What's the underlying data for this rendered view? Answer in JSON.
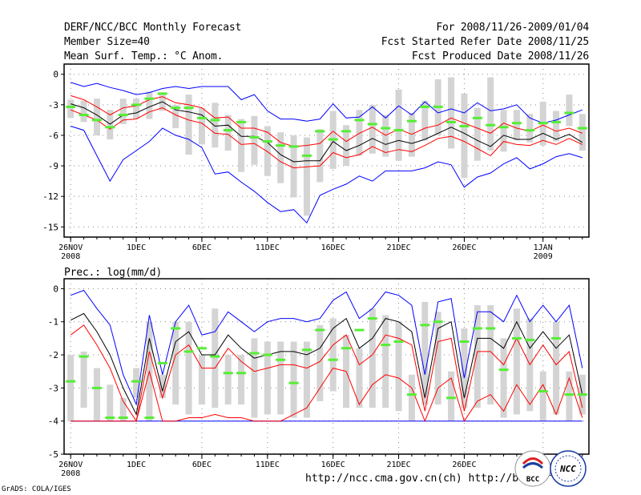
{
  "header": {
    "title": "DERF/NCC/BCC Monthly Forecast",
    "member_size": "Member Size=40",
    "variable": "Mean Surf. Temp.: °C Anom.",
    "period": "For 2008/11/26-2009/01/04",
    "fcst_started": "Fcst Started Refer Date 2008/11/25",
    "fcst_produced": "Fcst Produced Date 2008/11/26"
  },
  "footer": {
    "url": "http://ncc.cma.gov.cn(ch)   http://bcc.c",
    "credit": "GrADS: COLA/IGES",
    "logo_left": "BCC",
    "logo_right": "NCC"
  },
  "colors": {
    "spread": "#0000ff",
    "quartile": "#ff0000",
    "mean": "#000000",
    "median": "#55ee33",
    "box": "#d4d4d4",
    "grid": "#888888"
  },
  "chart_data": [
    {
      "type": "line",
      "title": "Mean Surf. Temp.: °C Anom.",
      "ylabel": "°C Anom.",
      "ylim": [
        -16,
        1
      ],
      "yticks": [
        0,
        -3,
        -6,
        -9,
        -12,
        -15
      ],
      "day_range": [
        -0.5,
        39.5
      ],
      "xticks": [
        {
          "day": 0,
          "label": "26NOV",
          "year": "2008"
        },
        {
          "day": 5,
          "label": "1DEC"
        },
        {
          "day": 10,
          "label": "6DEC"
        },
        {
          "day": 15,
          "label": "11DEC"
        },
        {
          "day": 20,
          "label": "16DEC"
        },
        {
          "day": 25,
          "label": "21DEC"
        },
        {
          "day": 30,
          "label": "26DEC"
        },
        {
          "day": 36,
          "label": "1JAN",
          "year": "2009"
        }
      ],
      "series": [
        {
          "name": "max",
          "color": "blue",
          "values": [
            -0.8,
            -1.2,
            -0.9,
            -1.3,
            -1.6,
            -2.0,
            -1.8,
            -1.4,
            -1.2,
            -1.4,
            -1.2,
            -1.2,
            -1.2,
            -2.5,
            -2.0,
            -3.6,
            -4.4,
            -4.4,
            -4.6,
            -4.4,
            -2.9,
            -4.3,
            -4.2,
            -3.2,
            -4.3,
            -3.1,
            -4.0,
            -2.7,
            -3.8,
            -3.4,
            -3.8,
            -2.8,
            -3.6,
            -3.4,
            -3.0,
            -4.3,
            -4.8,
            -4.5,
            -4.0,
            -3.5
          ]
        },
        {
          "name": "q75",
          "color": "red",
          "values": [
            -2.1,
            -2.5,
            -3.2,
            -4.0,
            -3.3,
            -3.1,
            -2.5,
            -2.2,
            -2.8,
            -3.0,
            -3.3,
            -4.3,
            -4.2,
            -5.3,
            -5.3,
            -5.7,
            -6.7,
            -7.1,
            -7.0,
            -6.8,
            -5.6,
            -6.6,
            -5.8,
            -5.2,
            -6.0,
            -5.4,
            -5.9,
            -5.3,
            -5.0,
            -4.3,
            -4.8,
            -5.3,
            -5.8,
            -4.8,
            -5.3,
            -5.6,
            -5.0,
            -5.6,
            -5.3,
            -5.8
          ]
        },
        {
          "name": "mean",
          "color": "black",
          "values": [
            -2.9,
            -3.3,
            -4.0,
            -4.9,
            -4.0,
            -3.8,
            -3.2,
            -2.7,
            -3.5,
            -3.7,
            -4.0,
            -5.1,
            -5.0,
            -6.1,
            -6.1,
            -6.7,
            -7.9,
            -8.6,
            -8.5,
            -8.5,
            -6.6,
            -7.5,
            -7.0,
            -6.3,
            -6.9,
            -6.5,
            -6.8,
            -6.4,
            -5.8,
            -5.2,
            -5.8,
            -6.5,
            -7.1,
            -6.0,
            -6.4,
            -6.4,
            -5.8,
            -6.4,
            -5.9,
            -6.7
          ]
        },
        {
          "name": "q25",
          "color": "red",
          "values": [
            -3.5,
            -4.0,
            -4.5,
            -5.4,
            -4.5,
            -4.4,
            -3.7,
            -3.3,
            -4.0,
            -4.5,
            -4.8,
            -5.8,
            -5.9,
            -6.9,
            -6.8,
            -7.6,
            -8.6,
            -9.2,
            -9.1,
            -9.0,
            -7.7,
            -8.2,
            -7.9,
            -7.1,
            -7.7,
            -7.4,
            -7.6,
            -7.0,
            -6.3,
            -6.1,
            -6.6,
            -7.3,
            -8.0,
            -6.6,
            -6.9,
            -7.0,
            -6.5,
            -6.9,
            -6.3,
            -6.9
          ]
        },
        {
          "name": "min",
          "color": "blue",
          "values": [
            -5.1,
            -5.5,
            -8.0,
            -10.5,
            -8.4,
            -7.5,
            -6.6,
            -5.3,
            -6.0,
            -6.4,
            -7.2,
            -9.8,
            -9.6,
            -10.6,
            -11.5,
            -12.6,
            -13.5,
            -13.3,
            -14.6,
            -11.9,
            -11.3,
            -10.8,
            -10.0,
            -10.5,
            -9.5,
            -9.5,
            -9.5,
            -9.2,
            -8.6,
            -8.9,
            -11.1,
            -10.1,
            -9.7,
            -8.8,
            -8.2,
            -9.3,
            -8.8,
            -8.1,
            -7.8,
            -8.2
          ]
        },
        {
          "name": "median",
          "color": "green",
          "values": [
            -3.2,
            -4.0,
            -4.5,
            -5.2,
            -4.0,
            -3.0,
            -2.4,
            -1.9,
            -3.3,
            -3.3,
            -4.3,
            -4.5,
            -5.5,
            -4.7,
            -6.2,
            -6.6,
            -7.0,
            -7.1,
            -8.0,
            -5.6,
            -6.4,
            -5.6,
            -4.5,
            -4.9,
            -5.3,
            -5.5,
            -4.6,
            -3.2,
            -3.2,
            -4.7,
            -5.1,
            -4.3,
            -5.0,
            -5.2,
            -4.8,
            -5.5,
            -4.8,
            -4.7,
            -3.8,
            -5.3
          ]
        },
        {
          "name": "box_high",
          "color": "grey",
          "values": [
            -2.5,
            -2.6,
            -2.4,
            -3.5,
            -2.4,
            -2.4,
            -1.7,
            -2.0,
            -3.0,
            -2.0,
            -3.3,
            -2.8,
            -4.0,
            -4.4,
            -4.1,
            -5.1,
            -5.7,
            -6.0,
            -6.2,
            -5.4,
            -3.6,
            -5.0,
            -3.5,
            -3.0,
            -4.0,
            -1.5,
            -3.8,
            -2.6,
            -0.5,
            -0.3,
            -1.9,
            -3.3,
            -0.3,
            -3.5,
            -3.5,
            -3.9,
            -2.7,
            -3.6,
            -2.0,
            -3.9
          ]
        },
        {
          "name": "box_low",
          "color": "grey",
          "values": [
            -4.3,
            -4.7,
            -6.0,
            -6.4,
            -4.9,
            -4.4,
            -4.4,
            -3.6,
            -5.3,
            -7.9,
            -6.9,
            -7.2,
            -7.5,
            -9.6,
            -8.9,
            -10.0,
            -10.7,
            -12.1,
            -13.9,
            -10.6,
            -9.3,
            -9.0,
            -8.0,
            -7.8,
            -8.1,
            -8.5,
            -8.1,
            -6.5,
            -6.0,
            -7.3,
            -10.2,
            -8.5,
            -7.5,
            -7.6,
            -6.5,
            -6.7,
            -7.0,
            -6.6,
            -5.1,
            -7.5
          ]
        }
      ]
    },
    {
      "type": "line",
      "title": "Prec.: log(mm/d)",
      "ylabel": "log(mm/d)",
      "ylim": [
        -5,
        0.3
      ],
      "yticks": [
        0,
        -1,
        -2,
        -3,
        -4,
        -5
      ],
      "day_range": [
        -0.5,
        39.5
      ],
      "xticks": [
        {
          "day": 0,
          "label": "26NOV",
          "year": "2008"
        },
        {
          "day": 5,
          "label": "1DEC"
        },
        {
          "day": 10,
          "label": "6DEC"
        },
        {
          "day": 15,
          "label": "11DEC"
        },
        {
          "day": 20,
          "label": "16DEC"
        },
        {
          "day": 25,
          "label": "21DEC"
        },
        {
          "day": 30,
          "label": "26DEC"
        },
        {
          "day": 36,
          "label": "1JAN",
          "year": "2009"
        }
      ],
      "series": [
        {
          "name": "max",
          "color": "blue",
          "values": [
            -0.2,
            -0.05,
            -0.6,
            -1.1,
            -2.6,
            -3.5,
            -0.8,
            -2.6,
            -1.0,
            -0.5,
            -1.4,
            -1.3,
            -0.7,
            -1.0,
            -1.3,
            -1.0,
            -0.9,
            -0.9,
            -1.0,
            -0.9,
            -0.35,
            -0.1,
            -0.9,
            -0.6,
            -0.1,
            -0.2,
            -0.5,
            -2.6,
            -0.4,
            -0.3,
            -2.7,
            -0.7,
            -0.7,
            -1.0,
            -0.2,
            -1.0,
            -0.5,
            -1.0,
            -0.5,
            -2.4
          ]
        },
        {
          "name": "q75",
          "color": "red",
          "values": [
            -1.4,
            -1.1,
            -1.7,
            -2.4,
            -3.4,
            -4.0,
            -1.9,
            -3.3,
            -2.0,
            -1.7,
            -2.4,
            -2.4,
            -1.8,
            -2.2,
            -2.5,
            -2.4,
            -2.3,
            -2.3,
            -2.4,
            -2.2,
            -1.7,
            -1.4,
            -2.3,
            -2.0,
            -1.4,
            -1.5,
            -1.7,
            -3.7,
            -1.6,
            -1.5,
            -3.7,
            -1.9,
            -1.9,
            -2.3,
            -1.5,
            -2.3,
            -1.7,
            -2.3,
            -1.9,
            -3.6
          ]
        },
        {
          "name": "mean",
          "color": "black",
          "values": [
            -0.95,
            -0.75,
            -1.3,
            -2.0,
            -3.0,
            -3.8,
            -1.5,
            -3.1,
            -1.6,
            -1.3,
            -2.0,
            -2.0,
            -1.4,
            -1.8,
            -2.1,
            -2.0,
            -1.9,
            -1.9,
            -2.0,
            -1.8,
            -1.2,
            -0.9,
            -1.8,
            -1.5,
            -0.9,
            -1.0,
            -1.3,
            -3.3,
            -1.2,
            -1.0,
            -3.3,
            -1.5,
            -1.5,
            -1.8,
            -1.0,
            -1.8,
            -1.3,
            -1.8,
            -1.4,
            -3.2
          ]
        },
        {
          "name": "q25",
          "color": "red",
          "values": [
            -4.0,
            -4.0,
            -4.0,
            -4.0,
            -4.0,
            -4.0,
            -2.5,
            -4.0,
            -4.0,
            -3.9,
            -3.9,
            -3.8,
            -3.9,
            -3.9,
            -4.0,
            -4.0,
            -4.0,
            -3.8,
            -3.6,
            -3.0,
            -2.4,
            -2.5,
            -3.5,
            -2.9,
            -2.6,
            -2.7,
            -3.0,
            -4.0,
            -3.0,
            -2.7,
            -4.0,
            -3.4,
            -3.2,
            -3.7,
            -2.9,
            -3.5,
            -2.9,
            -3.8,
            -2.7,
            -3.9
          ]
        },
        {
          "name": "min",
          "color": "blue",
          "values": [
            -4.0,
            -4.0,
            -4.0,
            -4.0,
            -4.0,
            -4.0,
            -4.0,
            -4.0,
            -4.0,
            -4.0,
            -4.0,
            -4.0,
            -4.0,
            -4.0,
            -4.0,
            -4.0,
            -4.0,
            -4.0,
            -4.0,
            -4.0,
            -4.0,
            -4.0,
            -4.0,
            -4.0,
            -4.0,
            -4.0,
            -4.0,
            -4.0,
            -4.0,
            -4.0,
            -4.0,
            -4.0,
            -4.0,
            -4.0,
            -4.0,
            -4.0,
            -4.0,
            -4.0,
            -4.0,
            -4.0
          ]
        },
        {
          "name": "median",
          "color": "green",
          "values": [
            -2.8,
            -2.05,
            -3.0,
            -3.9,
            -3.9,
            -2.8,
            -3.9,
            -2.25,
            -1.2,
            -1.9,
            -1.8,
            -2.05,
            -2.55,
            -2.55,
            -1.95,
            -2.0,
            -2.15,
            -2.85,
            -1.85,
            -1.25,
            -2.15,
            -1.8,
            -1.25,
            -0.9,
            -1.7,
            -1.6,
            -3.2,
            -1.1,
            -1.0,
            -3.3,
            -1.6,
            -1.2,
            -1.2,
            -2.45,
            -1.5,
            -1.55,
            -3.1,
            -1.5,
            -3.2,
            -3.2
          ]
        },
        {
          "name": "box_high",
          "color": "grey",
          "values": [
            -2.0,
            -1.9,
            -2.4,
            -2.9,
            -3.3,
            -2.4,
            -1.0,
            -2.6,
            -1.0,
            -1.0,
            -2.0,
            -0.6,
            -2.0,
            -2.0,
            -1.5,
            -1.6,
            -1.6,
            -1.6,
            -1.6,
            -1.1,
            -0.9,
            -1.4,
            -1.8,
            -0.6,
            -0.8,
            -1.0,
            -2.6,
            -0.4,
            -0.7,
            -2.5,
            -1.2,
            -0.5,
            -0.5,
            -1.5,
            -0.6,
            -0.9,
            -2.5,
            -1.0,
            -2.5,
            -2.6
          ]
        },
        {
          "name": "box_low",
          "color": "grey",
          "values": [
            -4.0,
            -3.6,
            -4.0,
            -4.0,
            -4.0,
            -3.3,
            -4.0,
            -3.3,
            -3.5,
            -3.8,
            -3.5,
            -3.6,
            -3.5,
            -3.5,
            -3.9,
            -3.8,
            -3.8,
            -3.9,
            -3.9,
            -3.4,
            -3.1,
            -3.6,
            -3.6,
            -3.6,
            -3.6,
            -3.7,
            -4.0,
            -3.5,
            -3.5,
            -4.0,
            -3.6,
            -3.6,
            -3.5,
            -3.9,
            -3.8,
            -3.7,
            -4.0,
            -3.8,
            -4.0,
            -3.8
          ]
        }
      ]
    }
  ]
}
